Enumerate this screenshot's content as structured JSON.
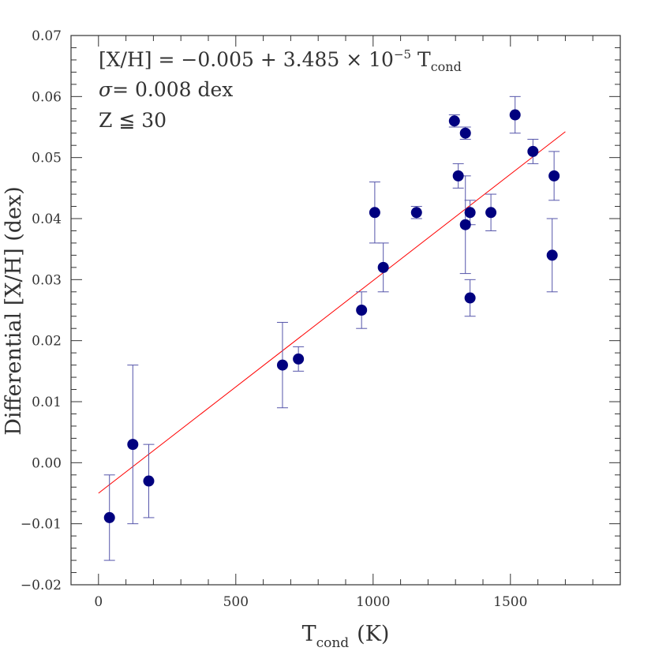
{
  "chart_data": {
    "type": "scatter",
    "xlabel": {
      "main": "T",
      "sub": "cond",
      "unit": "(K)"
    },
    "ylabel": "Differential [X/H] (dex)",
    "xlim": [
      -100,
      1900
    ],
    "ylim": [
      -0.02,
      0.07
    ],
    "x_major_ticks": [
      0,
      500,
      1000,
      1500
    ],
    "x_minor_step": 100,
    "y_major_ticks": [
      -0.02,
      -0.01,
      0.0,
      0.01,
      0.02,
      0.03,
      0.04,
      0.05,
      0.06,
      0.07
    ],
    "y_tick_labels": [
      "−0.02",
      "−0.01",
      "0.00",
      "0.01",
      "0.02",
      "0.03",
      "0.04",
      "0.05",
      "0.06",
      "0.07"
    ],
    "y_minor_step": 0.002,
    "grid": false,
    "colors": {
      "points": "#00007f",
      "error_bars": "#5555aa",
      "fit_line": "#ff0000",
      "axes": "#333333"
    },
    "points": [
      {
        "x": 40,
        "y": -0.009,
        "err_low": 0.007,
        "err_high": 0.007
      },
      {
        "x": 125,
        "y": 0.003,
        "err_low": 0.013,
        "err_high": 0.013
      },
      {
        "x": 183,
        "y": -0.003,
        "err_low": 0.006,
        "err_high": 0.006
      },
      {
        "x": 670,
        "y": 0.016,
        "err_low": 0.007,
        "err_high": 0.007
      },
      {
        "x": 728,
        "y": 0.017,
        "err_low": 0.002,
        "err_high": 0.002
      },
      {
        "x": 958,
        "y": 0.025,
        "err_low": 0.003,
        "err_high": 0.003
      },
      {
        "x": 1006,
        "y": 0.041,
        "err_low": 0.005,
        "err_high": 0.005
      },
      {
        "x": 1037,
        "y": 0.032,
        "err_low": 0.004,
        "err_high": 0.004
      },
      {
        "x": 1158,
        "y": 0.041,
        "err_low": 0.001,
        "err_high": 0.001
      },
      {
        "x": 1296,
        "y": 0.056,
        "err_low": 0.001,
        "err_high": 0.001
      },
      {
        "x": 1310,
        "y": 0.047,
        "err_low": 0.002,
        "err_high": 0.002
      },
      {
        "x": 1336,
        "y": 0.054,
        "err_low": 0.001,
        "err_high": 0.001
      },
      {
        "x": 1336,
        "y": 0.039,
        "err_low": 0.008,
        "err_high": 0.008
      },
      {
        "x": 1353,
        "y": 0.041,
        "err_low": 0.002,
        "err_high": 0.002
      },
      {
        "x": 1353,
        "y": 0.027,
        "err_low": 0.003,
        "err_high": 0.003
      },
      {
        "x": 1429,
        "y": 0.041,
        "err_low": 0.003,
        "err_high": 0.003
      },
      {
        "x": 1517,
        "y": 0.057,
        "err_low": 0.003,
        "err_high": 0.003
      },
      {
        "x": 1582,
        "y": 0.051,
        "err_low": 0.002,
        "err_high": 0.002
      },
      {
        "x": 1652,
        "y": 0.034,
        "err_low": 0.006,
        "err_high": 0.006
      },
      {
        "x": 1659,
        "y": 0.047,
        "err_low": 0.004,
        "err_high": 0.004
      }
    ],
    "fit": {
      "intercept": -0.005,
      "slope": 3.485e-05,
      "x_range": [
        0,
        1700
      ]
    },
    "annotations": {
      "line1": {
        "lhs": "[X/H] = −0.005 + 3.485 × 10",
        "exp": "−5",
        "var": " T",
        "var_sub": "cond"
      },
      "line2": {
        "sigma": "σ",
        "text": "= 0.008 dex"
      },
      "line3": "Z ≦ 30"
    }
  }
}
